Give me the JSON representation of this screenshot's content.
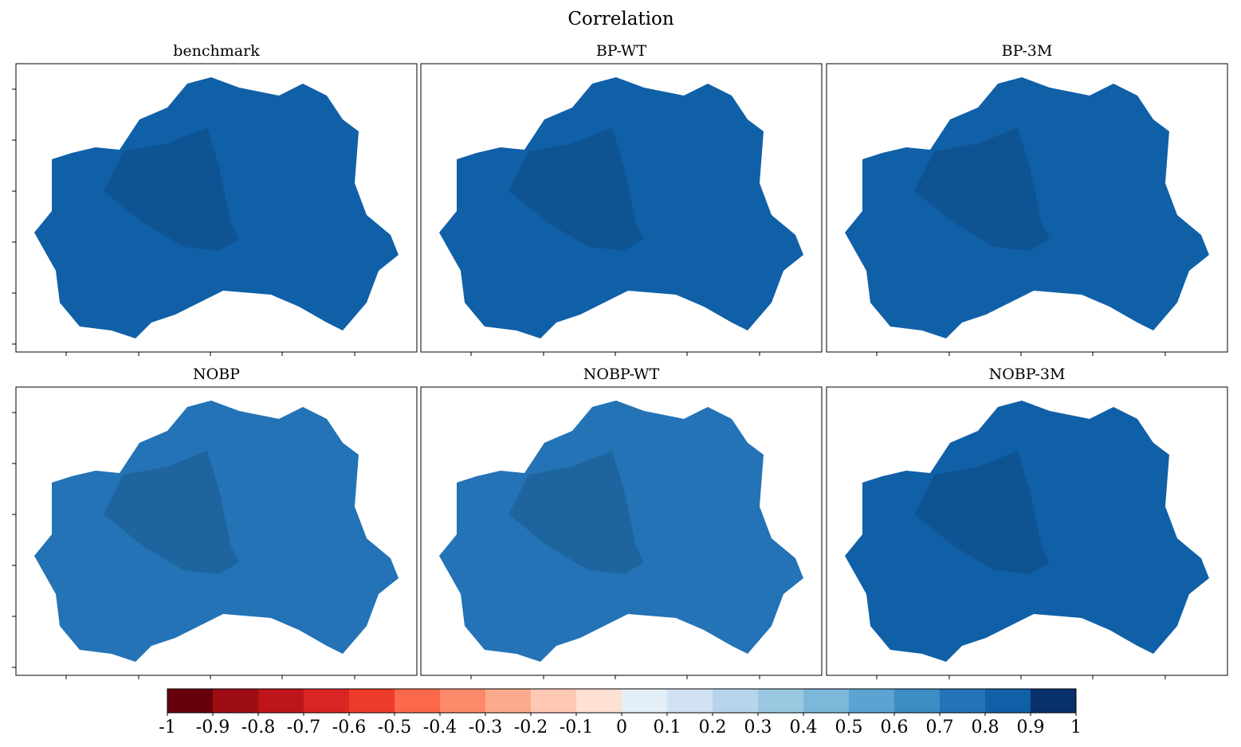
{
  "chart_data": {
    "type": "map",
    "title": "Correlation",
    "panels": [
      {
        "title": "benchmark",
        "color": "#1060a8"
      },
      {
        "title": "BP-WT",
        "color": "#1060a8"
      },
      {
        "title": "BP-3M",
        "color": "#1060a8"
      },
      {
        "title": "NOBP",
        "color": "#2373b6"
      },
      {
        "title": "NOBP-WT",
        "color": "#2373b6"
      },
      {
        "title": "NOBP-3M",
        "color": "#1060a8"
      }
    ],
    "colorbar": {
      "ticks": [
        -1,
        -0.9,
        -0.8,
        -0.7,
        -0.6,
        -0.5,
        -0.4,
        -0.3,
        -0.2,
        -0.1,
        0,
        0.1,
        0.2,
        0.3,
        0.4,
        0.5,
        0.6,
        0.7,
        0.8,
        0.9,
        1
      ],
      "colors": [
        "#67000d",
        "#9e0d14",
        "#bd151a",
        "#d92523",
        "#ef3b2c",
        "#fb694a",
        "#fc8a6a",
        "#fcaa8e",
        "#fdc9b4",
        "#fee0d5",
        "#e3eef9",
        "#d0e1f2",
        "#b7d4ea",
        "#9ac8e0",
        "#7db8da",
        "#5ba3d0",
        "#3d8dc4",
        "#2373b6",
        "#1060a8",
        "#08306b"
      ]
    }
  }
}
